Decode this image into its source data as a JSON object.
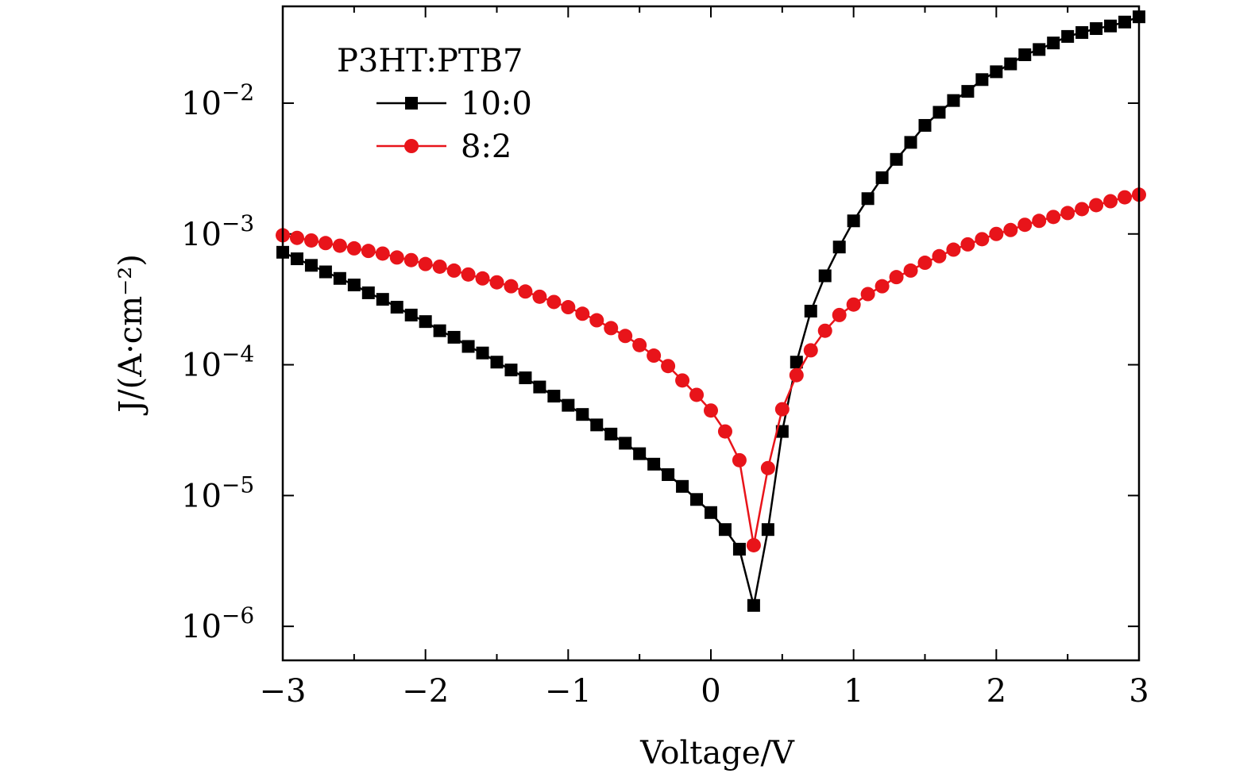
{
  "chart_data": {
    "type": "line",
    "title": "",
    "xlabel": "Voltage/V",
    "ylabel": "J/(A·cm⁻²)",
    "yscale": "log",
    "xlim": [
      -3,
      3
    ],
    "ylim_exp": [
      -6.26,
      -1.26
    ],
    "xticks": [
      {
        "value": -3,
        "label": "−3"
      },
      {
        "value": -2,
        "label": "−2"
      },
      {
        "value": -1,
        "label": "−1"
      },
      {
        "value": 0,
        "label": "0"
      },
      {
        "value": 1,
        "label": "1"
      },
      {
        "value": 2,
        "label": "2"
      },
      {
        "value": 3,
        "label": "3"
      }
    ],
    "yticks": [
      {
        "exp": -2,
        "base": "10",
        "sup": "−2"
      },
      {
        "exp": -3,
        "base": "10",
        "sup": "−3"
      },
      {
        "exp": -4,
        "base": "10",
        "sup": "−4"
      },
      {
        "exp": -5,
        "base": "10",
        "sup": "−5"
      },
      {
        "exp": -6,
        "base": "10",
        "sup": "−6"
      }
    ],
    "legend": {
      "title": "P3HT:PTB7",
      "position": "top-left"
    },
    "series": [
      {
        "name": "10:0",
        "color": "#000000",
        "marker": "square",
        "x": [
          -3.0,
          -2.9,
          -2.8,
          -2.7,
          -2.6,
          -2.5,
          -2.4,
          -2.3,
          -2.2,
          -2.1,
          -2.0,
          -1.9,
          -1.8,
          -1.7,
          -1.6,
          -1.5,
          -1.4,
          -1.3,
          -1.2,
          -1.1,
          -1.0,
          -0.9,
          -0.8,
          -0.7,
          -0.6,
          -0.5,
          -0.4,
          -0.3,
          -0.2,
          -0.1,
          0.0,
          0.1,
          0.2,
          0.3,
          0.4,
          0.5,
          0.6,
          0.7,
          0.8,
          0.9,
          1.0,
          1.1,
          1.2,
          1.3,
          1.4,
          1.5,
          1.6,
          1.7,
          1.8,
          1.9,
          2.0,
          2.1,
          2.2,
          2.3,
          2.4,
          2.5,
          2.6,
          2.7,
          2.8,
          2.9,
          3.0
        ],
        "log10_y": [
          -3.14,
          -3.19,
          -3.24,
          -3.29,
          -3.34,
          -3.39,
          -3.45,
          -3.5,
          -3.56,
          -3.62,
          -3.67,
          -3.74,
          -3.79,
          -3.86,
          -3.91,
          -3.98,
          -4.04,
          -4.1,
          -4.17,
          -4.24,
          -4.31,
          -4.38,
          -4.46,
          -4.53,
          -4.6,
          -4.68,
          -4.76,
          -4.84,
          -4.93,
          -5.03,
          -5.13,
          -5.26,
          -5.41,
          -5.84,
          -5.26,
          -4.51,
          -3.98,
          -3.59,
          -3.32,
          -3.1,
          -2.9,
          -2.73,
          -2.57,
          -2.43,
          -2.3,
          -2.17,
          -2.07,
          -1.98,
          -1.91,
          -1.82,
          -1.76,
          -1.7,
          -1.63,
          -1.59,
          -1.54,
          -1.49,
          -1.46,
          -1.43,
          -1.41,
          -1.38,
          -1.34
        ]
      },
      {
        "name": "8:2",
        "color": "#e8141a",
        "marker": "circle",
        "x": [
          -3.0,
          -2.9,
          -2.8,
          -2.7,
          -2.6,
          -2.5,
          -2.4,
          -2.3,
          -2.2,
          -2.1,
          -2.0,
          -1.9,
          -1.8,
          -1.7,
          -1.6,
          -1.5,
          -1.4,
          -1.3,
          -1.2,
          -1.1,
          -1.0,
          -0.9,
          -0.8,
          -0.7,
          -0.6,
          -0.5,
          -0.4,
          -0.3,
          -0.2,
          -0.1,
          0.0,
          0.1,
          0.2,
          0.3,
          0.4,
          0.5,
          0.6,
          0.7,
          0.8,
          0.9,
          1.0,
          1.1,
          1.2,
          1.3,
          1.4,
          1.5,
          1.6,
          1.7,
          1.8,
          1.9,
          2.0,
          2.1,
          2.2,
          2.3,
          2.4,
          2.5,
          2.6,
          2.7,
          2.8,
          2.9,
          3.0
        ],
        "log10_y": [
          -3.01,
          -3.03,
          -3.05,
          -3.07,
          -3.09,
          -3.11,
          -3.13,
          -3.15,
          -3.18,
          -3.2,
          -3.23,
          -3.25,
          -3.28,
          -3.31,
          -3.34,
          -3.37,
          -3.4,
          -3.44,
          -3.48,
          -3.52,
          -3.56,
          -3.61,
          -3.66,
          -3.72,
          -3.78,
          -3.85,
          -3.93,
          -4.01,
          -4.12,
          -4.23,
          -4.35,
          -4.51,
          -4.73,
          -5.38,
          -4.79,
          -4.34,
          -4.08,
          -3.89,
          -3.74,
          -3.62,
          -3.54,
          -3.46,
          -3.4,
          -3.33,
          -3.28,
          -3.22,
          -3.17,
          -3.12,
          -3.08,
          -3.04,
          -3.0,
          -2.97,
          -2.93,
          -2.9,
          -2.87,
          -2.84,
          -2.81,
          -2.78,
          -2.75,
          -2.72,
          -2.7
        ]
      }
    ]
  }
}
